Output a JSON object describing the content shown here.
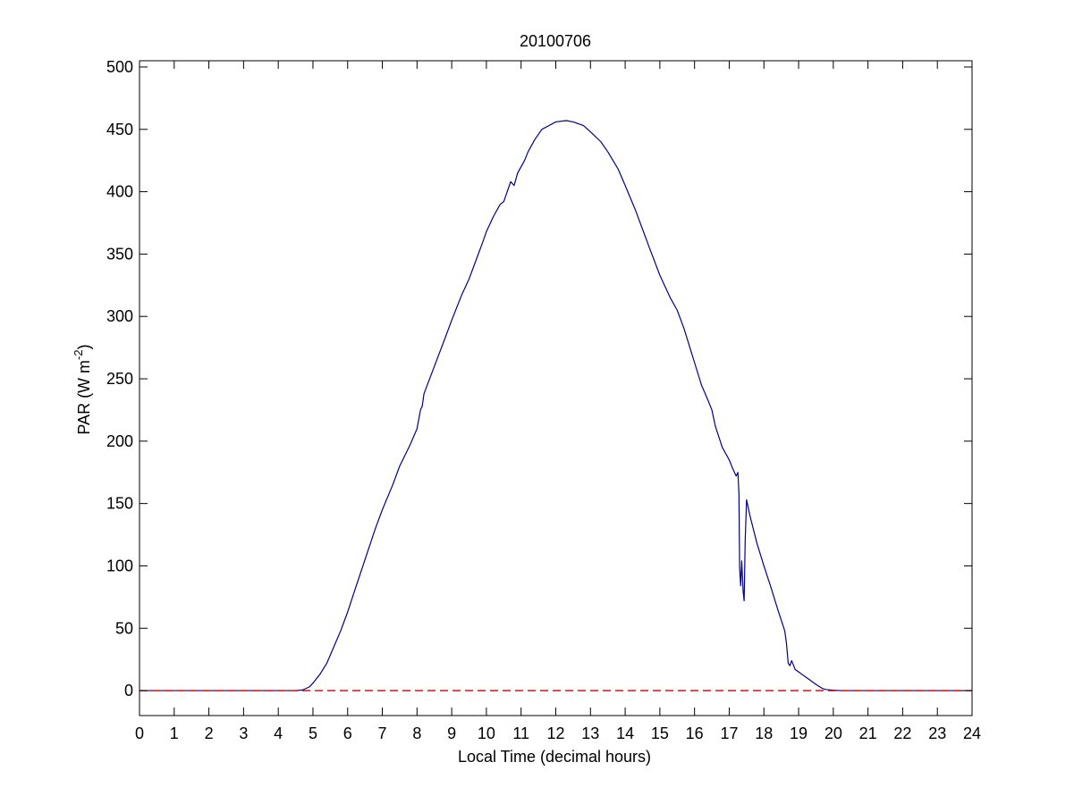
{
  "chart_data": {
    "type": "line",
    "title": "20100706",
    "xlabel": "Local Time (decimal hours)",
    "ylabel": {
      "main": "PAR (W m",
      "superscript": "-2",
      "close": ")"
    },
    "xlim": [
      0,
      24
    ],
    "ylim": [
      -20,
      505
    ],
    "xticks": [
      0,
      1,
      2,
      3,
      4,
      5,
      6,
      7,
      8,
      9,
      10,
      11,
      12,
      13,
      14,
      15,
      16,
      17,
      18,
      19,
      20,
      21,
      22,
      23,
      24
    ],
    "yticks": [
      0,
      50,
      100,
      150,
      200,
      250,
      300,
      350,
      400,
      450,
      500
    ],
    "grid": false,
    "legend": "none",
    "series": [
      {
        "color": "#00008b",
        "style": "solid",
        "points": [
          [
            0,
            0
          ],
          [
            4.5,
            0
          ],
          [
            4.7,
            0.5
          ],
          [
            4.9,
            3
          ],
          [
            5.0,
            6
          ],
          [
            5.2,
            13
          ],
          [
            5.4,
            22
          ],
          [
            5.6,
            35
          ],
          [
            5.8,
            48
          ],
          [
            6.0,
            63
          ],
          [
            6.2,
            80
          ],
          [
            6.5,
            105
          ],
          [
            6.8,
            130
          ],
          [
            7.0,
            145
          ],
          [
            7.3,
            165
          ],
          [
            7.5,
            180
          ],
          [
            7.8,
            197
          ],
          [
            8.0,
            210
          ],
          [
            8.1,
            225
          ],
          [
            8.15,
            228
          ],
          [
            8.2,
            238
          ],
          [
            8.5,
            260
          ],
          [
            8.8,
            282
          ],
          [
            9.0,
            297
          ],
          [
            9.3,
            318
          ],
          [
            9.5,
            330
          ],
          [
            9.7,
            345
          ],
          [
            9.9,
            360
          ],
          [
            10.0,
            368
          ],
          [
            10.2,
            380
          ],
          [
            10.4,
            390
          ],
          [
            10.5,
            392
          ],
          [
            10.6,
            400
          ],
          [
            10.7,
            408
          ],
          [
            10.8,
            405
          ],
          [
            10.9,
            415
          ],
          [
            11.0,
            420
          ],
          [
            11.1,
            425
          ],
          [
            11.2,
            432
          ],
          [
            11.4,
            442
          ],
          [
            11.6,
            450
          ],
          [
            11.8,
            453
          ],
          [
            12.0,
            456
          ],
          [
            12.3,
            457
          ],
          [
            12.5,
            456
          ],
          [
            12.8,
            453
          ],
          [
            13.0,
            448
          ],
          [
            13.3,
            440
          ],
          [
            13.5,
            432
          ],
          [
            13.8,
            418
          ],
          [
            14.0,
            405
          ],
          [
            14.3,
            385
          ],
          [
            14.5,
            370
          ],
          [
            14.7,
            355
          ],
          [
            15.0,
            333
          ],
          [
            15.3,
            315
          ],
          [
            15.5,
            305
          ],
          [
            15.7,
            290
          ],
          [
            16.0,
            263
          ],
          [
            16.2,
            245
          ],
          [
            16.4,
            232
          ],
          [
            16.5,
            225
          ],
          [
            16.6,
            212
          ],
          [
            16.8,
            195
          ],
          [
            17.0,
            185
          ],
          [
            17.1,
            178
          ],
          [
            17.2,
            172
          ],
          [
            17.25,
            175
          ],
          [
            17.28,
            158
          ],
          [
            17.3,
            98
          ],
          [
            17.33,
            84
          ],
          [
            17.36,
            104
          ],
          [
            17.4,
            80
          ],
          [
            17.43,
            72
          ],
          [
            17.46,
            120
          ],
          [
            17.5,
            153
          ],
          [
            17.6,
            140
          ],
          [
            17.8,
            118
          ],
          [
            18.0,
            100
          ],
          [
            18.2,
            83
          ],
          [
            18.4,
            65
          ],
          [
            18.6,
            48
          ],
          [
            18.65,
            38
          ],
          [
            18.7,
            22
          ],
          [
            18.75,
            20
          ],
          [
            18.8,
            24
          ],
          [
            18.9,
            17
          ],
          [
            19.0,
            15
          ],
          [
            19.1,
            13
          ],
          [
            19.3,
            9
          ],
          [
            19.5,
            5
          ],
          [
            19.7,
            1.5
          ],
          [
            19.8,
            0.8
          ],
          [
            20.0,
            0.3
          ],
          [
            20.2,
            0
          ],
          [
            24,
            0
          ]
        ]
      },
      {
        "color": "#cc0000",
        "style": "dashed",
        "points": [
          [
            0,
            0
          ],
          [
            24,
            0
          ]
        ]
      }
    ]
  }
}
